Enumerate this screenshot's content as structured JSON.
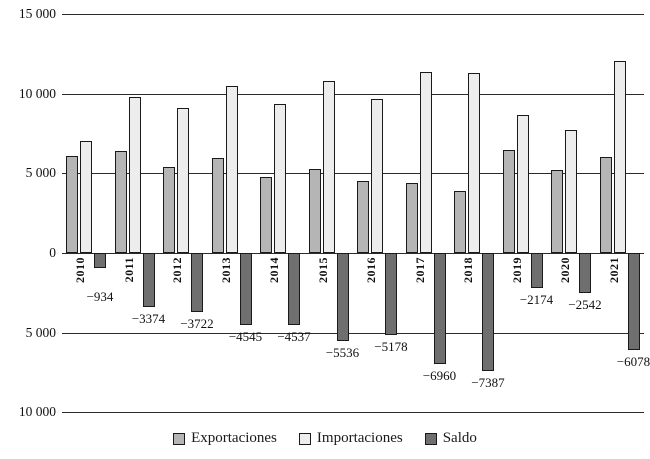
{
  "chart_data": {
    "type": "bar",
    "title": "",
    "xlabel": "",
    "ylabel": "",
    "categories": [
      "2010",
      "2011",
      "2012",
      "2013",
      "2014",
      "2015",
      "2016",
      "2017",
      "2018",
      "2019",
      "2020",
      "2021"
    ],
    "series": [
      {
        "name": "Exportaciones",
        "color": "#b5b5b5",
        "values": [
          6100,
          6400,
          5400,
          5950,
          4800,
          5250,
          4500,
          4400,
          3900,
          6500,
          5200,
          6000
        ]
      },
      {
        "name": "Importaciones",
        "color": "#ededed",
        "values": [
          7034,
          9774,
          9122,
          10495,
          9337,
          10786,
          9678,
          11360,
          11287,
          8674,
          7742,
          12078
        ]
      },
      {
        "name": "Saldo",
        "color": "#6f6f6f",
        "values": [
          -934,
          -3374,
          -3722,
          -4545,
          -4537,
          -5536,
          -5178,
          -6960,
          -7387,
          -2174,
          -2542,
          -6078
        ]
      }
    ],
    "saldo_labels": [
      "−934",
      "−3374",
      "−3722",
      "−4545",
      "−4537",
      "−5536",
      "−5178",
      "−6960",
      "−7387",
      "−2174",
      "−2542",
      "−6078"
    ],
    "y_ticks": [
      {
        "value": 15000,
        "label": "15 000"
      },
      {
        "value": 10000,
        "label": "10 000"
      },
      {
        "value": 5000,
        "label": "5 000"
      },
      {
        "value": 0,
        "label": "0"
      },
      {
        "value": -5000,
        "label": "5 000"
      },
      {
        "value": -10000,
        "label": "10 000"
      }
    ],
    "ylim": [
      -10000,
      15000
    ],
    "grid": true,
    "legend_position": "bottom"
  }
}
